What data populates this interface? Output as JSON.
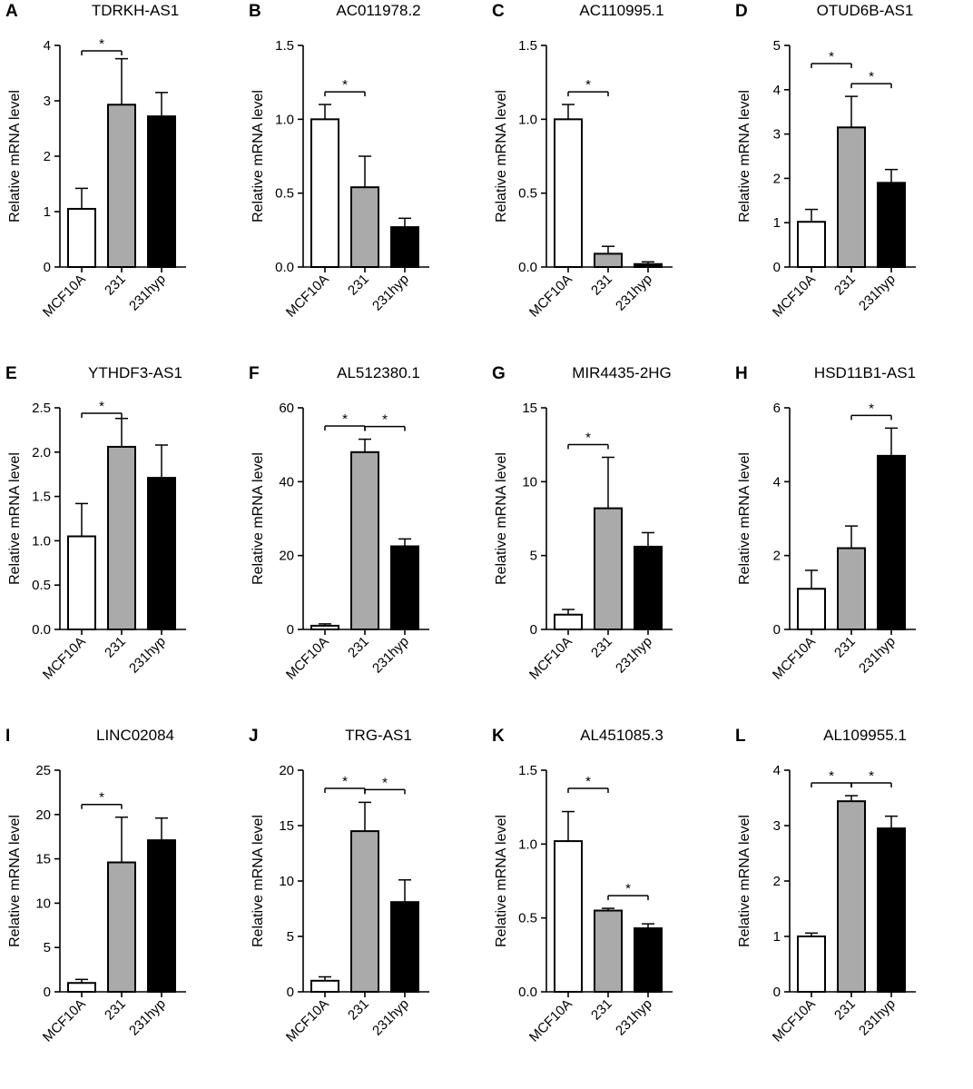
{
  "colors": {
    "mcf10a": "#ffffff",
    "c231": "#aaaaaa",
    "c231hyp": "#000000",
    "stroke": "#000000"
  },
  "chart_data": [
    {
      "letter": "A",
      "type": "bar",
      "title": "TDRKH-AS1",
      "ylabel": "Relative mRNA level",
      "categories": [
        "MCF10A",
        "231",
        "231hyp"
      ],
      "values": [
        1.05,
        2.93,
        2.72
      ],
      "errors": [
        0.37,
        0.83,
        0.43
      ],
      "ylim": [
        0,
        4
      ],
      "yticks": [
        "0",
        "1",
        "2",
        "3",
        "4"
      ],
      "yticks_value": [
        0,
        1,
        2,
        3,
        4
      ],
      "significance": [
        {
          "from": 0,
          "to": 1,
          "label": "*"
        }
      ]
    },
    {
      "letter": "B",
      "type": "bar",
      "title": "AC011978.2",
      "ylabel": "Relative mRNA level",
      "categories": [
        "MCF10A",
        "231",
        "231hyp"
      ],
      "values": [
        1.0,
        0.54,
        0.27
      ],
      "errors": [
        0.1,
        0.21,
        0.06
      ],
      "ylim": [
        0,
        1.5
      ],
      "yticks": [
        "0.0",
        "0.5",
        "1.0",
        "1.5"
      ],
      "yticks_value": [
        0,
        0.5,
        1.0,
        1.5
      ],
      "significance": [
        {
          "from": 0,
          "to": 1,
          "label": "*"
        }
      ]
    },
    {
      "letter": "C",
      "type": "bar",
      "title": "AC110995.1",
      "ylabel": "Relative mRNA level",
      "categories": [
        "MCF10A",
        "231",
        "231hyp"
      ],
      "values": [
        1.0,
        0.09,
        0.02
      ],
      "errors": [
        0.1,
        0.05,
        0.015
      ],
      "ylim": [
        0,
        1.5
      ],
      "yticks": [
        "0.0",
        "0.5",
        "1.0",
        "1.5"
      ],
      "yticks_value": [
        0,
        0.5,
        1.0,
        1.5
      ],
      "significance": [
        {
          "from": 0,
          "to": 1,
          "label": "*"
        }
      ]
    },
    {
      "letter": "D",
      "type": "bar",
      "title": "OTUD6B-AS1",
      "ylabel": "Relative mRNA level",
      "categories": [
        "MCF10A",
        "231",
        "231hyp"
      ],
      "values": [
        1.02,
        3.15,
        1.9
      ],
      "errors": [
        0.28,
        0.7,
        0.3
      ],
      "ylim": [
        0,
        5
      ],
      "yticks": [
        "0",
        "1",
        "2",
        "3",
        "4",
        "5"
      ],
      "yticks_value": [
        0,
        1,
        2,
        3,
        4,
        5
      ],
      "significance": [
        {
          "from": 0,
          "to": 1,
          "label": "*"
        },
        {
          "from": 1,
          "to": 2,
          "label": "*"
        }
      ]
    },
    {
      "letter": "E",
      "type": "bar",
      "title": "YTHDF3-AS1",
      "ylabel": "Relative mRNA level",
      "categories": [
        "MCF10A",
        "231",
        "231hyp"
      ],
      "values": [
        1.05,
        2.06,
        1.71
      ],
      "errors": [
        0.37,
        0.32,
        0.37
      ],
      "ylim": [
        0,
        2.5
      ],
      "yticks": [
        "0.0",
        "0.5",
        "1.0",
        "1.5",
        "2.0",
        "2.5"
      ],
      "yticks_value": [
        0,
        0.5,
        1.0,
        1.5,
        2.0,
        2.5
      ],
      "significance": [
        {
          "from": 0,
          "to": 1,
          "label": "*"
        }
      ]
    },
    {
      "letter": "F",
      "type": "bar",
      "title": "AL512380.1",
      "ylabel": "Relative mRNA level",
      "categories": [
        "MCF10A",
        "231",
        "231hyp"
      ],
      "values": [
        1.0,
        48,
        22.5
      ],
      "errors": [
        0.5,
        3.5,
        2.0
      ],
      "ylim": [
        0,
        60
      ],
      "yticks": [
        "0",
        "20",
        "40",
        "60"
      ],
      "yticks_value": [
        0,
        20,
        40,
        60
      ],
      "significance": [
        {
          "from": 0,
          "to": 1,
          "label": "*"
        },
        {
          "from": 1,
          "to": 2,
          "label": "*"
        }
      ]
    },
    {
      "letter": "G",
      "type": "bar",
      "title": "MIR4435-2HG",
      "ylabel": "Relative mRNA level",
      "categories": [
        "MCF10A",
        "231",
        "231hyp"
      ],
      "values": [
        1.0,
        8.2,
        5.6
      ],
      "errors": [
        0.35,
        3.45,
        0.95
      ],
      "ylim": [
        0,
        15
      ],
      "yticks": [
        "0",
        "5",
        "10",
        "15"
      ],
      "yticks_value": [
        0,
        5,
        10,
        15
      ],
      "significance": [
        {
          "from": 0,
          "to": 1,
          "label": "*"
        }
      ]
    },
    {
      "letter": "H",
      "type": "bar",
      "title": "HSD11B1-AS1",
      "ylabel": "Relative mRNA level",
      "categories": [
        "MCF10A",
        "231",
        "231hyp"
      ],
      "values": [
        1.1,
        2.2,
        4.7
      ],
      "errors": [
        0.5,
        0.6,
        0.75
      ],
      "ylim": [
        0,
        6
      ],
      "yticks": [
        "0",
        "2",
        "4",
        "6"
      ],
      "yticks_value": [
        0,
        2,
        4,
        6
      ],
      "significance": [
        {
          "from": 1,
          "to": 2,
          "label": "*"
        }
      ]
    },
    {
      "letter": "I",
      "type": "bar",
      "title": "LINC02084",
      "ylabel": "Relative mRNA level",
      "categories": [
        "MCF10A",
        "231",
        "231hyp"
      ],
      "values": [
        1.0,
        14.6,
        17.1
      ],
      "errors": [
        0.4,
        5.1,
        2.5
      ],
      "ylim": [
        0,
        25
      ],
      "yticks": [
        "0",
        "5",
        "10",
        "15",
        "20",
        "25"
      ],
      "yticks_value": [
        0,
        5,
        10,
        15,
        20,
        25
      ],
      "significance": [
        {
          "from": 0,
          "to": 1,
          "label": "*"
        }
      ]
    },
    {
      "letter": "J",
      "type": "bar",
      "title": "TRG-AS1",
      "ylabel": "Relative mRNA level",
      "categories": [
        "MCF10A",
        "231",
        "231hyp"
      ],
      "values": [
        1.0,
        14.5,
        8.1
      ],
      "errors": [
        0.35,
        2.6,
        2.0
      ],
      "ylim": [
        0,
        20
      ],
      "yticks": [
        "0",
        "5",
        "10",
        "15",
        "20"
      ],
      "yticks_value": [
        0,
        5,
        10,
        15,
        20
      ],
      "significance": [
        {
          "from": 0,
          "to": 1,
          "label": "*"
        },
        {
          "from": 1,
          "to": 2,
          "label": "*"
        }
      ]
    },
    {
      "letter": "K",
      "type": "bar",
      "title": "AL451085.3",
      "ylabel": "Relative mRNA level",
      "categories": [
        "MCF10A",
        "231",
        "231hyp"
      ],
      "values": [
        1.02,
        0.55,
        0.43
      ],
      "errors": [
        0.2,
        0.015,
        0.03
      ],
      "ylim": [
        0,
        1.5
      ],
      "yticks": [
        "0.0",
        "0.5",
        "1.0",
        "1.5"
      ],
      "yticks_value": [
        0,
        0.5,
        1.0,
        1.5
      ],
      "significance": [
        {
          "from": 0,
          "to": 1,
          "label": "*"
        },
        {
          "from": 1,
          "to": 2,
          "label": "*"
        }
      ]
    },
    {
      "letter": "L",
      "type": "bar",
      "title": "AL109955.1",
      "ylabel": "Relative mRNA level",
      "categories": [
        "MCF10A",
        "231",
        "231hyp"
      ],
      "values": [
        1.0,
        3.44,
        2.95
      ],
      "errors": [
        0.06,
        0.1,
        0.22
      ],
      "ylim": [
        0,
        4
      ],
      "yticks": [
        "0",
        "1",
        "2",
        "3",
        "4"
      ],
      "yticks_value": [
        0,
        1,
        2,
        3,
        4
      ],
      "significance": [
        {
          "from": 0,
          "to": 1,
          "label": "*"
        },
        {
          "from": 1,
          "to": 2,
          "label": "*"
        }
      ]
    }
  ]
}
